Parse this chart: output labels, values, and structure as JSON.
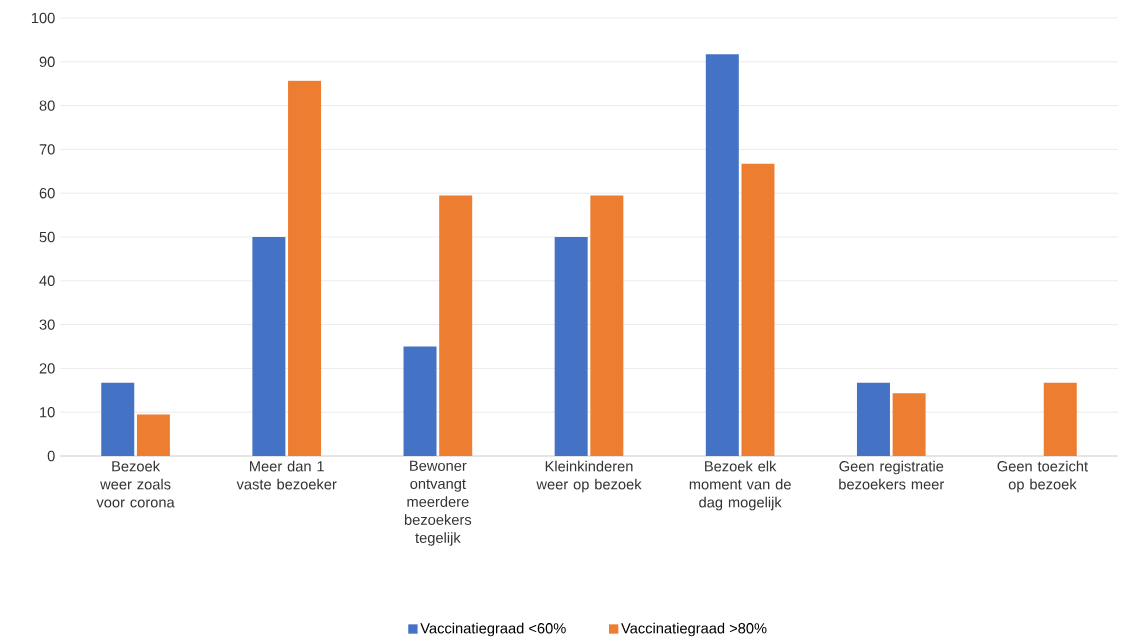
{
  "chart_data": {
    "type": "bar",
    "categories": [
      "Bezoek weer zoals voor corona",
      "Meer dan 1 vaste bezoeker",
      "Bewoner ontvangt meerdere bezoekers tegelijk",
      "Kleinkinderen weer op bezoek",
      "Bezoek elk moment van de dag mogelijk",
      "Geen registratie bezoekers meer",
      "Geen toezicht op bezoek"
    ],
    "series": [
      {
        "name": "Vaccinatiegraad <60%",
        "color": "#4472c4",
        "values": [
          16.7,
          50,
          25,
          50,
          91.7,
          16.7,
          0
        ]
      },
      {
        "name": "Vaccinatiegraad >80%",
        "color": "#ed7d31",
        "values": [
          9.5,
          85.7,
          59.5,
          59.5,
          66.7,
          14.3,
          16.7
        ]
      }
    ],
    "ylim": [
      0,
      100
    ],
    "yticks": [
      0,
      10,
      20,
      30,
      40,
      50,
      60,
      70,
      80,
      90,
      100
    ],
    "grid": "y",
    "legend": "bottom"
  }
}
